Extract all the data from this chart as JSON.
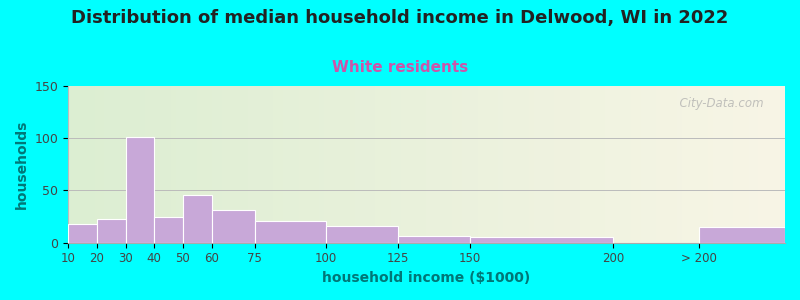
{
  "title": "Distribution of median household income in Delwood, WI in 2022",
  "subtitle": "White residents",
  "xlabel": "household income ($1000)",
  "ylabel": "households",
  "title_fontsize": 13,
  "subtitle_fontsize": 11,
  "subtitle_color": "#cc55aa",
  "ylabel_color": "#007777",
  "xlabel_color": "#007777",
  "background_color": "#00ffff",
  "bar_color": "#c8a8d8",
  "bar_edge_color": "#ffffff",
  "bin_edges": [
    10,
    20,
    30,
    40,
    50,
    60,
    75,
    100,
    125,
    150,
    200,
    230,
    260
  ],
  "values": [
    18,
    23,
    101,
    25,
    46,
    31,
    21,
    16,
    6,
    5,
    0,
    15
  ],
  "tick_labels": [
    "10",
    "20",
    "30",
    "40",
    "50",
    "60",
    "75",
    "100",
    "125",
    "150",
    "200",
    "> 200"
  ],
  "tick_positions": [
    10,
    20,
    30,
    40,
    50,
    60,
    75,
    100,
    125,
    150,
    200,
    230
  ],
  "ylim": [
    0,
    150
  ],
  "yticks": [
    0,
    50,
    100,
    150
  ],
  "watermark": "  City-Data.com"
}
